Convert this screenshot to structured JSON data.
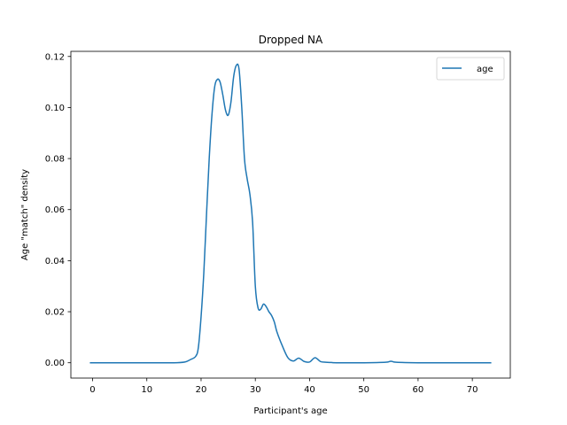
{
  "chart_data": {
    "type": "line",
    "title": "Dropped NA",
    "xlabel": "Participant's age",
    "ylabel": "Age \"match\" density",
    "xlim": [
      -4,
      77
    ],
    "ylim": [
      -0.006,
      0.122
    ],
    "xticks": [
      0,
      10,
      20,
      30,
      40,
      50,
      60,
      70
    ],
    "xtick_labels": [
      "0",
      "10",
      "20",
      "30",
      "40",
      "50",
      "60",
      "70"
    ],
    "yticks": [
      0.0,
      0.02,
      0.04,
      0.06,
      0.08,
      0.1,
      0.12
    ],
    "ytick_labels": [
      "0.00",
      "0.02",
      "0.04",
      "0.06",
      "0.08",
      "0.10",
      "0.12"
    ],
    "grid": false,
    "legend": {
      "placement": "top-right",
      "entries": [
        "age"
      ]
    },
    "series": [
      {
        "name": "age",
        "color": "#1f77b4",
        "x": [
          -0.5,
          5,
          10,
          15,
          17,
          18,
          19,
          19.5,
          20,
          20.5,
          21,
          21.5,
          22,
          22.5,
          23,
          23.5,
          24,
          24.5,
          25,
          25.5,
          26,
          26.5,
          27,
          27.5,
          28,
          28.5,
          29,
          29.5,
          30,
          30.5,
          31,
          31.5,
          32,
          32.5,
          33,
          33.5,
          34,
          35,
          36,
          37,
          38,
          39,
          40,
          41,
          42,
          43,
          44,
          45,
          50,
          54,
          55,
          56,
          60,
          65,
          70,
          73.5
        ],
        "y": [
          0.0,
          0.0,
          0.0,
          0.0,
          0.0003,
          0.0012,
          0.0025,
          0.006,
          0.018,
          0.035,
          0.058,
          0.08,
          0.097,
          0.108,
          0.111,
          0.11,
          0.105,
          0.099,
          0.097,
          0.102,
          0.112,
          0.1165,
          0.115,
          0.1,
          0.08,
          0.072,
          0.066,
          0.055,
          0.03,
          0.0215,
          0.021,
          0.023,
          0.022,
          0.02,
          0.0185,
          0.016,
          0.012,
          0.0065,
          0.002,
          0.0007,
          0.0018,
          0.0005,
          0.0003,
          0.002,
          0.0005,
          0.0002,
          0.0001,
          0.0,
          0.0,
          0.0002,
          0.0006,
          0.0002,
          0.0,
          0.0,
          0.0,
          0.0
        ]
      }
    ]
  }
}
